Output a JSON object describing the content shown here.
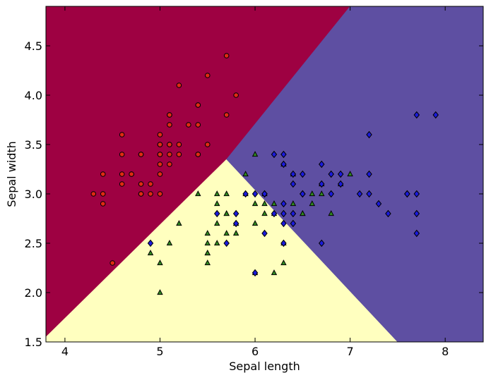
{
  "chart_data": {
    "type": "scatter",
    "title": "",
    "xlabel": "Sepal length",
    "ylabel": "Sepal width",
    "xlim": [
      3.8,
      8.4
    ],
    "ylim": [
      1.5,
      4.9
    ],
    "grid": false,
    "xticks": [
      4,
      5,
      6,
      7,
      8
    ],
    "xtick_labels": [
      "4",
      "5",
      "6",
      "7",
      "8"
    ],
    "yticks": [
      1.5,
      2.0,
      2.5,
      3.0,
      3.5,
      4.0,
      4.5
    ],
    "ytick_labels": [
      "1.5",
      "2.0",
      "2.5",
      "3.0",
      "3.5",
      "4.0",
      "4.5"
    ],
    "decision_regions": [
      {
        "class": 0,
        "color": "#9e0142",
        "polygon": [
          [
            3.8,
            1.55
          ],
          [
            5.7,
            3.35
          ],
          [
            7.0,
            4.9
          ],
          [
            3.8,
            4.9
          ]
        ]
      },
      {
        "class": 1,
        "color": "#ffffbf",
        "polygon": [
          [
            3.8,
            1.5
          ],
          [
            3.8,
            1.55
          ],
          [
            5.7,
            3.35
          ],
          [
            7.5,
            1.5
          ]
        ]
      },
      {
        "class": 2,
        "color": "#5e4fa2",
        "polygon": [
          [
            5.7,
            3.35
          ],
          [
            7.0,
            4.9
          ],
          [
            8.4,
            4.9
          ],
          [
            8.4,
            1.5
          ],
          [
            7.5,
            1.5
          ]
        ]
      }
    ],
    "series": [
      {
        "class": 0,
        "marker": "circle",
        "color": "#e02b12",
        "points": [
          [
            5.1,
            3.5
          ],
          [
            4.9,
            3.0
          ],
          [
            4.7,
            3.2
          ],
          [
            4.6,
            3.1
          ],
          [
            5.0,
            3.6
          ],
          [
            5.4,
            3.9
          ],
          [
            4.6,
            3.4
          ],
          [
            5.0,
            3.4
          ],
          [
            4.4,
            2.9
          ],
          [
            4.9,
            3.1
          ],
          [
            5.4,
            3.7
          ],
          [
            4.8,
            3.4
          ],
          [
            4.8,
            3.0
          ],
          [
            4.3,
            3.0
          ],
          [
            5.8,
            4.0
          ],
          [
            5.7,
            4.4
          ],
          [
            5.4,
            3.9
          ],
          [
            5.1,
            3.5
          ],
          [
            5.7,
            3.8
          ],
          [
            5.1,
            3.8
          ],
          [
            5.4,
            3.4
          ],
          [
            5.1,
            3.7
          ],
          [
            4.6,
            3.6
          ],
          [
            5.1,
            3.3
          ],
          [
            4.8,
            3.4
          ],
          [
            5.0,
            3.0
          ],
          [
            5.0,
            3.4
          ],
          [
            5.2,
            3.5
          ],
          [
            5.2,
            3.4
          ],
          [
            4.7,
            3.2
          ],
          [
            4.8,
            3.1
          ],
          [
            5.4,
            3.4
          ],
          [
            5.2,
            4.1
          ],
          [
            5.5,
            4.2
          ],
          [
            5.0,
            3.2
          ],
          [
            5.5,
            3.5
          ],
          [
            4.4,
            3.0
          ],
          [
            5.1,
            3.4
          ],
          [
            5.0,
            3.5
          ],
          [
            4.5,
            2.3
          ],
          [
            4.4,
            3.2
          ],
          [
            5.0,
            3.5
          ],
          [
            5.1,
            3.8
          ],
          [
            4.8,
            3.0
          ],
          [
            4.6,
            3.2
          ],
          [
            5.3,
            3.7
          ],
          [
            5.0,
            3.3
          ]
        ]
      },
      {
        "class": 1,
        "marker": "triangle",
        "color": "#2f8a1f",
        "points": [
          [
            7.0,
            3.2
          ],
          [
            6.4,
            3.2
          ],
          [
            5.5,
            2.3
          ],
          [
            6.5,
            2.8
          ],
          [
            5.7,
            2.8
          ],
          [
            6.3,
            3.3
          ],
          [
            4.9,
            2.4
          ],
          [
            6.6,
            2.9
          ],
          [
            5.2,
            2.7
          ],
          [
            5.0,
            2.0
          ],
          [
            5.9,
            3.0
          ],
          [
            6.0,
            2.2
          ],
          [
            6.1,
            2.9
          ],
          [
            5.6,
            2.9
          ],
          [
            6.7,
            3.1
          ],
          [
            5.6,
            3.0
          ],
          [
            5.8,
            2.7
          ],
          [
            6.2,
            2.2
          ],
          [
            5.6,
            2.5
          ],
          [
            5.9,
            3.2
          ],
          [
            6.1,
            2.8
          ],
          [
            6.3,
            2.5
          ],
          [
            6.4,
            2.9
          ],
          [
            6.6,
            3.0
          ],
          [
            6.8,
            2.8
          ],
          [
            6.7,
            3.0
          ],
          [
            6.0,
            2.9
          ],
          [
            5.7,
            2.6
          ],
          [
            5.5,
            2.4
          ],
          [
            5.8,
            2.7
          ],
          [
            6.0,
            2.7
          ],
          [
            5.4,
            3.0
          ],
          [
            6.0,
            3.4
          ],
          [
            6.3,
            2.3
          ],
          [
            5.5,
            2.5
          ],
          [
            5.5,
            2.6
          ],
          [
            6.1,
            3.0
          ],
          [
            5.8,
            2.6
          ],
          [
            5.0,
            2.3
          ],
          [
            5.6,
            2.7
          ],
          [
            5.7,
            3.0
          ],
          [
            6.2,
            2.9
          ],
          [
            5.1,
            2.5
          ],
          [
            5.7,
            2.8
          ],
          [
            6.9,
            3.1
          ],
          [
            6.5,
            2.8
          ],
          [
            5.5,
            2.4
          ],
          [
            6.2,
            2.8
          ]
        ]
      },
      {
        "class": 2,
        "marker": "diamond",
        "color": "#1a1adb",
        "points": [
          [
            6.3,
            3.3
          ],
          [
            5.8,
            2.7
          ],
          [
            7.1,
            3.0
          ],
          [
            6.3,
            2.9
          ],
          [
            6.5,
            3.0
          ],
          [
            7.6,
            3.0
          ],
          [
            4.9,
            2.5
          ],
          [
            7.3,
            2.9
          ],
          [
            6.7,
            2.5
          ],
          [
            7.2,
            3.6
          ],
          [
            6.5,
            3.2
          ],
          [
            6.4,
            2.7
          ],
          [
            6.8,
            3.0
          ],
          [
            5.7,
            2.5
          ],
          [
            5.8,
            2.8
          ],
          [
            6.4,
            3.2
          ],
          [
            7.7,
            3.8
          ],
          [
            7.7,
            2.6
          ],
          [
            6.0,
            2.2
          ],
          [
            6.9,
            3.2
          ],
          [
            5.6,
            2.8
          ],
          [
            7.7,
            2.8
          ],
          [
            6.3,
            2.7
          ],
          [
            6.7,
            3.3
          ],
          [
            7.2,
            3.2
          ],
          [
            6.2,
            2.8
          ],
          [
            6.1,
            3.0
          ],
          [
            7.2,
            3.0
          ],
          [
            7.4,
            2.8
          ],
          [
            7.9,
            3.8
          ],
          [
            6.1,
            2.6
          ],
          [
            7.7,
            3.0
          ],
          [
            6.0,
            3.0
          ],
          [
            6.9,
            3.1
          ],
          [
            6.7,
            3.1
          ],
          [
            6.4,
            3.1
          ],
          [
            6.8,
            3.2
          ],
          [
            6.2,
            3.4
          ],
          [
            5.9,
            3.0
          ],
          [
            6.3,
            3.4
          ],
          [
            6.3,
            2.8
          ],
          [
            6.4,
            2.8
          ],
          [
            7.6,
            3.0
          ],
          [
            6.3,
            2.5
          ],
          [
            6.5,
            3.0
          ],
          [
            6.1,
            3.0
          ]
        ]
      }
    ]
  }
}
